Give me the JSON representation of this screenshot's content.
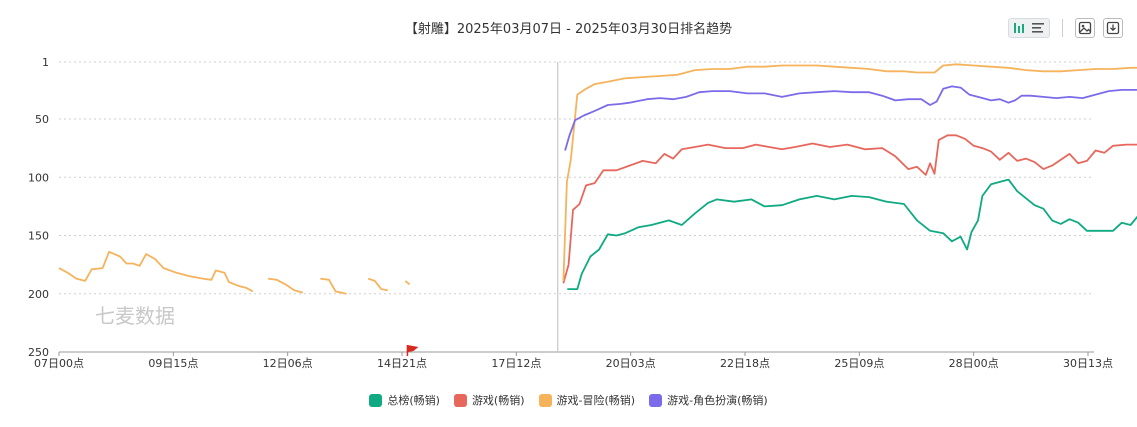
{
  "chart_data": {
    "type": "line",
    "title": "【射雕】2025年03月07日 - 2025年03月30日排名趋势",
    "y_inverted": true,
    "ylim": [
      1,
      250
    ],
    "y_ticks": [
      "1",
      "50",
      "100",
      "150",
      "200",
      "250"
    ],
    "x_ticks": [
      "07日00点",
      "09日15点",
      "12日06点",
      "14日21点",
      "17日12点",
      "20日03点",
      "22日18点",
      "25日09点",
      "28日00点",
      "30日13点"
    ],
    "grid": true,
    "legend_position": "bottom",
    "watermark": "七麦数据",
    "series": [
      {
        "name": "总榜(畅销)",
        "color": "#0fa982",
        "points": [
          [
            11.67,
            196
          ],
          [
            11.9,
            196
          ],
          [
            12.0,
            183
          ],
          [
            12.2,
            168
          ],
          [
            12.4,
            162
          ],
          [
            12.6,
            149
          ],
          [
            12.8,
            150
          ],
          [
            13.0,
            148
          ],
          [
            13.3,
            143
          ],
          [
            13.6,
            141
          ],
          [
            14.0,
            137
          ],
          [
            14.3,
            141
          ],
          [
            14.6,
            131
          ],
          [
            14.9,
            122
          ],
          [
            15.1,
            119
          ],
          [
            15.5,
            121
          ],
          [
            15.9,
            119
          ],
          [
            16.2,
            125
          ],
          [
            16.6,
            124
          ],
          [
            17.0,
            119
          ],
          [
            17.4,
            116
          ],
          [
            17.8,
            119
          ],
          [
            18.2,
            116
          ],
          [
            18.6,
            117
          ],
          [
            19.0,
            121
          ],
          [
            19.4,
            123
          ],
          [
            19.7,
            137
          ],
          [
            20.0,
            146
          ],
          [
            20.3,
            148
          ],
          [
            20.5,
            155
          ],
          [
            20.7,
            151
          ],
          [
            20.85,
            162
          ],
          [
            20.95,
            147
          ],
          [
            21.1,
            137
          ],
          [
            21.2,
            116
          ],
          [
            21.4,
            106
          ],
          [
            21.6,
            104
          ],
          [
            21.8,
            102
          ],
          [
            22.0,
            112
          ],
          [
            22.2,
            118
          ],
          [
            22.4,
            124
          ],
          [
            22.6,
            127
          ],
          [
            22.8,
            137
          ],
          [
            23.0,
            140
          ],
          [
            23.2,
            136
          ],
          [
            23.4,
            139
          ],
          [
            23.6,
            146
          ],
          [
            23.9,
            146
          ],
          [
            24.2,
            146
          ],
          [
            24.4,
            139
          ],
          [
            24.6,
            141
          ],
          [
            24.8,
            132
          ],
          [
            25.0,
            118
          ],
          [
            25.3,
            116
          ],
          [
            25.6,
            122
          ],
          [
            25.9,
            118
          ],
          [
            26.2,
            116
          ],
          [
            26.5,
            121
          ],
          [
            26.8,
            137
          ],
          [
            27.1,
            134
          ],
          [
            27.4,
            140
          ],
          [
            27.6,
            147
          ],
          [
            27.8,
            146
          ],
          [
            27.9,
            158
          ],
          [
            28.0,
            136
          ],
          [
            28.3,
            137
          ],
          [
            28.6,
            142
          ],
          [
            28.9,
            148
          ],
          [
            29.2,
            147
          ],
          [
            29.5,
            152
          ],
          [
            29.7,
            161
          ],
          [
            30.0,
            152
          ],
          [
            30.3,
            155
          ],
          [
            30.45,
            167
          ],
          [
            30.55,
            153
          ]
        ]
      },
      {
        "name": "游戏(畅销)",
        "color": "#e8675c",
        "points": [
          [
            11.58,
            191
          ],
          [
            11.7,
            175
          ],
          [
            11.8,
            128
          ],
          [
            11.95,
            123
          ],
          [
            12.1,
            107
          ],
          [
            12.3,
            105
          ],
          [
            12.5,
            94
          ],
          [
            12.8,
            94
          ],
          [
            13.1,
            90
          ],
          [
            13.4,
            86
          ],
          [
            13.7,
            88
          ],
          [
            13.9,
            80
          ],
          [
            14.1,
            84
          ],
          [
            14.3,
            76
          ],
          [
            14.6,
            74
          ],
          [
            14.9,
            72
          ],
          [
            15.3,
            75
          ],
          [
            15.7,
            75
          ],
          [
            16.0,
            72
          ],
          [
            16.3,
            74
          ],
          [
            16.6,
            76
          ],
          [
            16.9,
            74
          ],
          [
            17.3,
            71
          ],
          [
            17.7,
            74
          ],
          [
            18.1,
            72
          ],
          [
            18.5,
            76
          ],
          [
            18.9,
            75
          ],
          [
            19.2,
            82
          ],
          [
            19.5,
            93
          ],
          [
            19.7,
            91
          ],
          [
            19.9,
            98
          ],
          [
            20.0,
            88
          ],
          [
            20.1,
            97
          ],
          [
            20.2,
            68
          ],
          [
            20.4,
            64
          ],
          [
            20.6,
            64
          ],
          [
            20.8,
            67
          ],
          [
            21.0,
            73
          ],
          [
            21.2,
            75
          ],
          [
            21.4,
            78
          ],
          [
            21.6,
            85
          ],
          [
            21.8,
            79
          ],
          [
            22.0,
            86
          ],
          [
            22.2,
            84
          ],
          [
            22.4,
            87
          ],
          [
            22.6,
            93
          ],
          [
            22.8,
            90
          ],
          [
            23.0,
            85
          ],
          [
            23.2,
            80
          ],
          [
            23.4,
            88
          ],
          [
            23.6,
            86
          ],
          [
            23.8,
            77
          ],
          [
            24.0,
            79
          ],
          [
            24.2,
            73
          ],
          [
            24.5,
            72
          ],
          [
            24.8,
            72
          ],
          [
            25.1,
            76
          ],
          [
            25.3,
            79
          ],
          [
            25.5,
            72
          ],
          [
            25.8,
            71
          ],
          [
            26.1,
            75
          ],
          [
            26.4,
            83
          ],
          [
            26.6,
            87
          ],
          [
            26.8,
            86
          ],
          [
            27.0,
            98
          ],
          [
            27.15,
            88
          ],
          [
            27.4,
            88
          ],
          [
            27.7,
            94
          ],
          [
            28.0,
            96
          ],
          [
            28.3,
            96
          ],
          [
            28.6,
            93
          ],
          [
            28.9,
            97
          ],
          [
            29.2,
            102
          ],
          [
            29.5,
            108
          ],
          [
            29.8,
            100
          ],
          [
            30.1,
            101
          ],
          [
            30.4,
            102
          ],
          [
            30.5,
            106
          ],
          [
            30.55,
            99
          ]
        ]
      },
      {
        "name": "游戏-冒险(畅销)",
        "color": "#f5b35c",
        "points": [
          [
            0.0,
            178
          ],
          [
            0.2,
            182
          ],
          [
            0.4,
            187
          ],
          [
            0.6,
            189
          ],
          [
            0.75,
            179
          ],
          [
            1.0,
            178
          ],
          [
            1.15,
            164
          ],
          [
            1.4,
            168
          ],
          [
            1.55,
            174
          ],
          [
            1.7,
            174
          ],
          [
            1.85,
            176
          ],
          [
            2.0,
            166
          ],
          [
            2.2,
            170
          ],
          [
            2.4,
            178
          ],
          [
            2.7,
            182
          ],
          [
            3.0,
            185
          ],
          [
            3.3,
            187
          ],
          [
            3.5,
            188
          ],
          [
            3.6,
            180
          ],
          [
            3.8,
            182
          ],
          [
            3.9,
            190
          ],
          [
            4.1,
            193
          ],
          [
            4.3,
            195
          ],
          [
            4.45,
            198
          ],
          null,
          [
            4.8,
            187
          ],
          [
            5.0,
            188
          ],
          [
            5.2,
            192
          ],
          [
            5.4,
            197
          ],
          [
            5.6,
            199
          ],
          null,
          [
            6.0,
            187
          ],
          [
            6.2,
            188
          ],
          [
            6.35,
            198
          ],
          [
            6.6,
            200
          ],
          null,
          [
            7.1,
            187
          ],
          [
            7.25,
            189
          ],
          [
            7.4,
            196
          ],
          [
            7.55,
            197
          ],
          null,
          [
            7.95,
            189
          ],
          [
            8.05,
            192
          ],
          null,
          [
            11.58,
            189
          ],
          [
            11.66,
            104
          ],
          [
            11.75,
            85
          ],
          [
            11.9,
            29
          ],
          [
            12.1,
            24
          ],
          [
            12.3,
            20
          ],
          [
            12.6,
            18
          ],
          [
            13.0,
            15
          ],
          [
            13.4,
            14
          ],
          [
            13.8,
            13
          ],
          [
            14.2,
            12
          ],
          [
            14.6,
            8
          ],
          [
            15.0,
            7
          ],
          [
            15.4,
            7
          ],
          [
            15.8,
            5
          ],
          [
            16.2,
            5
          ],
          [
            16.6,
            4
          ],
          [
            17.0,
            4
          ],
          [
            17.4,
            4
          ],
          [
            17.8,
            5
          ],
          [
            18.2,
            6
          ],
          [
            18.6,
            7
          ],
          [
            19.0,
            9
          ],
          [
            19.4,
            9
          ],
          [
            19.7,
            10
          ],
          [
            20.1,
            10
          ],
          [
            20.3,
            4
          ],
          [
            20.6,
            3
          ],
          [
            21.0,
            4
          ],
          [
            21.4,
            5
          ],
          [
            21.8,
            6
          ],
          [
            22.2,
            8
          ],
          [
            22.6,
            9
          ],
          [
            23.0,
            9
          ],
          [
            23.4,
            8
          ],
          [
            23.8,
            7
          ],
          [
            24.2,
            7
          ],
          [
            24.6,
            6
          ],
          [
            25.0,
            6
          ],
          [
            25.4,
            7
          ],
          [
            25.7,
            5
          ],
          [
            26.1,
            3
          ],
          [
            26.5,
            4
          ],
          [
            26.8,
            7
          ],
          [
            27.2,
            8
          ],
          [
            27.6,
            10
          ],
          [
            28.0,
            12
          ],
          [
            28.3,
            11
          ],
          [
            28.6,
            12
          ],
          [
            28.9,
            13
          ],
          [
            29.2,
            13
          ],
          [
            29.5,
            13
          ],
          [
            29.8,
            13
          ],
          [
            30.1,
            12
          ],
          [
            30.35,
            12
          ],
          [
            30.55,
            10
          ]
        ]
      },
      {
        "name": "游戏-角色扮演(畅销)",
        "color": "#7b6bea",
        "points": [
          [
            11.62,
            77
          ],
          [
            11.72,
            64
          ],
          [
            11.85,
            51
          ],
          [
            12.05,
            47
          ],
          [
            12.3,
            43
          ],
          [
            12.6,
            38
          ],
          [
            12.9,
            37
          ],
          [
            13.1,
            36
          ],
          [
            13.5,
            33
          ],
          [
            13.8,
            32
          ],
          [
            14.1,
            33
          ],
          [
            14.4,
            31
          ],
          [
            14.7,
            27
          ],
          [
            15.0,
            26
          ],
          [
            15.4,
            26
          ],
          [
            15.8,
            28
          ],
          [
            16.2,
            28
          ],
          [
            16.6,
            31
          ],
          [
            17.0,
            28
          ],
          [
            17.4,
            27
          ],
          [
            17.8,
            26
          ],
          [
            18.2,
            27
          ],
          [
            18.6,
            27
          ],
          [
            18.9,
            30
          ],
          [
            19.2,
            34
          ],
          [
            19.5,
            33
          ],
          [
            19.8,
            33
          ],
          [
            20.0,
            38
          ],
          [
            20.15,
            35
          ],
          [
            20.3,
            24
          ],
          [
            20.5,
            22
          ],
          [
            20.7,
            23
          ],
          [
            20.9,
            29
          ],
          [
            21.1,
            31
          ],
          [
            21.4,
            34
          ],
          [
            21.6,
            33
          ],
          [
            21.8,
            36
          ],
          [
            21.95,
            34
          ],
          [
            22.1,
            30
          ],
          [
            22.3,
            30
          ],
          [
            22.6,
            31
          ],
          [
            22.9,
            32
          ],
          [
            23.2,
            31
          ],
          [
            23.5,
            32
          ],
          [
            23.8,
            29
          ],
          [
            24.1,
            26
          ],
          [
            24.4,
            25
          ],
          [
            24.8,
            25
          ],
          [
            25.2,
            26
          ],
          [
            25.6,
            25
          ],
          [
            25.9,
            24
          ],
          [
            26.2,
            27
          ],
          [
            26.5,
            29
          ],
          [
            26.8,
            30
          ],
          [
            27.1,
            33
          ],
          [
            27.4,
            35
          ],
          [
            27.7,
            37
          ],
          [
            27.9,
            41
          ],
          [
            28.1,
            40
          ],
          [
            28.4,
            40
          ],
          [
            28.7,
            43
          ],
          [
            29.0,
            43
          ],
          [
            29.3,
            40
          ],
          [
            29.6,
            40
          ],
          [
            29.9,
            39
          ],
          [
            30.2,
            39
          ],
          [
            30.4,
            40
          ],
          [
            30.5,
            44
          ],
          [
            30.55,
            41
          ]
        ]
      }
    ]
  },
  "toolbar": {
    "icons": [
      "bar-chart-icon",
      "list-icon",
      "image-icon",
      "download-icon"
    ]
  }
}
